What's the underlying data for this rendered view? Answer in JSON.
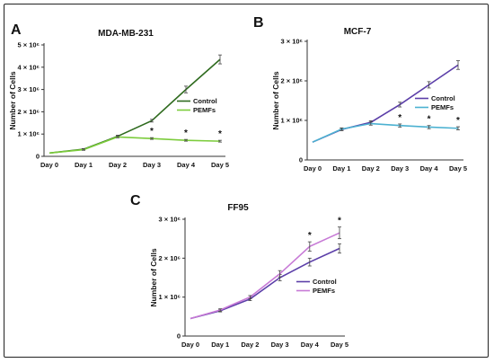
{
  "figure": {
    "panels": [
      "A",
      "B",
      "C"
    ]
  },
  "chart_data": [
    {
      "type": "line",
      "panel": "A",
      "title": "MDA-MB-231",
      "ylabel": "Number of Cells",
      "xlabel": "",
      "categories": [
        "Day 0",
        "Day 1",
        "Day 2",
        "Day 3",
        "Day 4",
        "Day 5"
      ],
      "ylim": [
        0,
        5000000
      ],
      "yticks": [
        0,
        1000000,
        2000000,
        3000000,
        4000000,
        5000000
      ],
      "ytick_labels": [
        "0",
        "1 × 10⁶",
        "2 × 10⁶",
        "3 × 10⁶",
        "4 × 10⁶",
        "5 × 10⁶"
      ],
      "legend_position": "right",
      "series": [
        {
          "name": "Control",
          "color": "#2f6b1f",
          "values": [
            150000,
            320000,
            900000,
            1600000,
            3000000,
            4350000
          ],
          "errors": [
            0,
            30000,
            50000,
            60000,
            150000,
            200000
          ]
        },
        {
          "name": "PEMFs",
          "color": "#7ccc3c",
          "values": [
            150000,
            300000,
            870000,
            800000,
            720000,
            680000
          ],
          "errors": [
            0,
            30000,
            40000,
            40000,
            40000,
            40000
          ]
        }
      ],
      "significance": [
        3,
        4,
        5
      ],
      "significance_mark": "*"
    },
    {
      "type": "line",
      "panel": "B",
      "title": "MCF-7",
      "ylabel": "Number of Cells",
      "xlabel": "",
      "categories": [
        "Day 0",
        "Day 1",
        "Day 2",
        "Day 3",
        "Day 4",
        "Day 5"
      ],
      "ylim": [
        0,
        3000000
      ],
      "yticks": [
        0,
        1000000,
        2000000,
        3000000
      ],
      "ytick_labels": [
        "0",
        "1 × 10⁶",
        "2 × 10⁶",
        "3 × 10⁶"
      ],
      "legend_position": "right",
      "series": [
        {
          "name": "Control",
          "color": "#5b3ea8",
          "values": [
            450000,
            770000,
            950000,
            1400000,
            1900000,
            2400000
          ],
          "errors": [
            0,
            30000,
            40000,
            60000,
            80000,
            110000
          ]
        },
        {
          "name": "PEMFs",
          "color": "#4bb1d1",
          "values": [
            450000,
            780000,
            920000,
            870000,
            830000,
            800000
          ],
          "errors": [
            0,
            30000,
            40000,
            40000,
            40000,
            40000
          ]
        }
      ],
      "significance": [
        3,
        4,
        5
      ],
      "significance_mark": "*"
    },
    {
      "type": "line",
      "panel": "C",
      "title": "FF95",
      "ylabel": "Number of Cells",
      "xlabel": "",
      "categories": [
        "Day 0",
        "Day 1",
        "Day 2",
        "Day 3",
        "Day 4",
        "Day 5"
      ],
      "ylim": [
        0,
        3000000
      ],
      "yticks": [
        0,
        1000000,
        2000000,
        3000000
      ],
      "ytick_labels": [
        "0",
        "1 × 10⁶",
        "2 × 10⁶",
        "3 × 10⁶"
      ],
      "legend_position": "right",
      "series": [
        {
          "name": "Control",
          "color": "#5b3ea8",
          "values": [
            450000,
            650000,
            950000,
            1500000,
            1900000,
            2250000
          ],
          "errors": [
            0,
            30000,
            40000,
            80000,
            100000,
            120000
          ]
        },
        {
          "name": "PEMFs",
          "color": "#c77ad6",
          "values": [
            450000,
            670000,
            1000000,
            1600000,
            2300000,
            2650000
          ],
          "errors": [
            0,
            30000,
            40000,
            80000,
            120000,
            150000
          ]
        }
      ],
      "significance": [
        4,
        5
      ],
      "significance_mark": "*"
    }
  ]
}
